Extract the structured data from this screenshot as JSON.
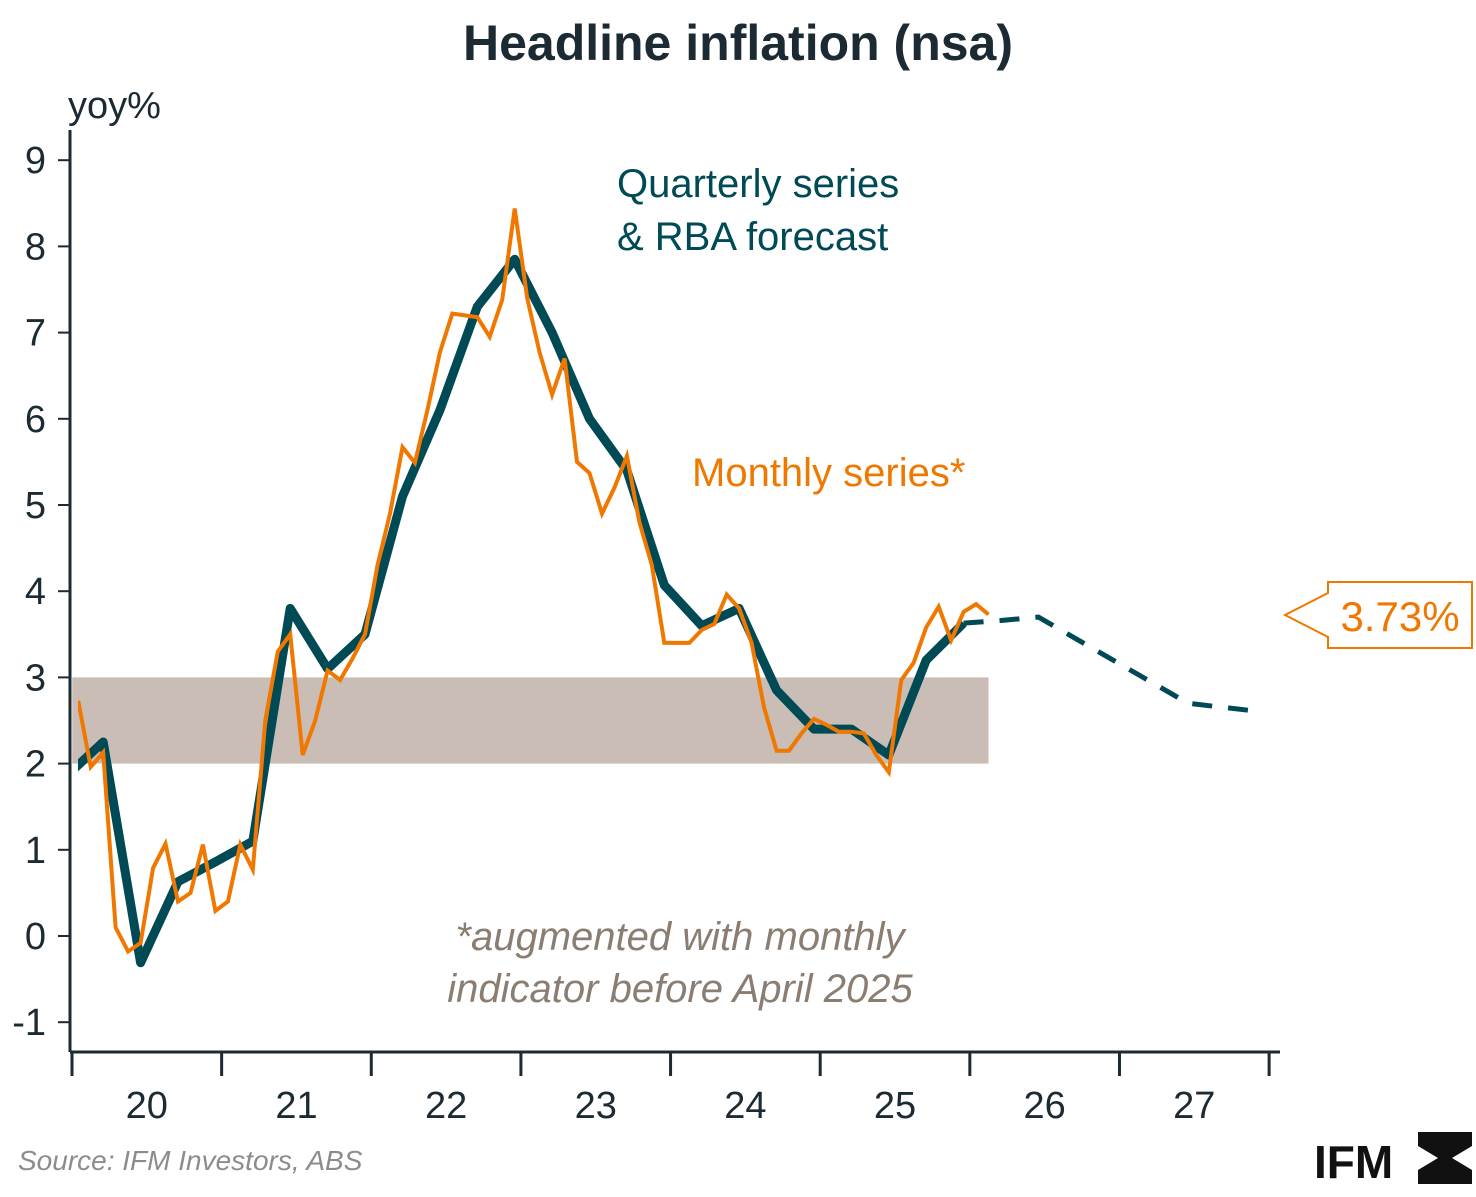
{
  "chart_data": {
    "type": "line",
    "title": "Headline inflation (nsa)",
    "ylabel": "yoy%",
    "ylim": [
      -1.4,
      9.4
    ],
    "yticks": [
      -1,
      0,
      1,
      2,
      3,
      4,
      5,
      6,
      7,
      8,
      9
    ],
    "xticks": [
      "20",
      "21",
      "22",
      "23",
      "24",
      "25",
      "26",
      "27"
    ],
    "xrange": [
      "2020-01",
      "2027-12"
    ],
    "grid": false,
    "colors": {
      "quarterly": "#004a55",
      "monthly": "#f07800",
      "band": "#c9bdb6",
      "note": "#8a7d72",
      "axis": "#1c2b33"
    },
    "target_band": {
      "low": 2,
      "high": 3,
      "from": "2020-01",
      "to": "2026-02"
    },
    "series": [
      {
        "name": "Quarterly series & RBA forecast",
        "style": "solid",
        "dates": [
          "2019-12",
          "2020-03",
          "2020-06",
          "2020-09",
          "2020-12",
          "2021-03",
          "2021-06",
          "2021-09",
          "2021-12",
          "2022-03",
          "2022-06",
          "2022-09",
          "2022-12",
          "2023-03",
          "2023-06",
          "2023-09",
          "2023-12",
          "2024-03",
          "2024-06",
          "2024-09",
          "2024-12",
          "2025-03",
          "2025-06",
          "2025-09",
          "2025-12"
        ],
        "values": [
          1.85,
          2.25,
          -0.31,
          0.63,
          0.86,
          1.1,
          3.8,
          3.1,
          3.5,
          5.1,
          6.1,
          7.3,
          7.85,
          7.0,
          6.0,
          5.4,
          4.07,
          3.6,
          3.8,
          2.85,
          2.4,
          2.4,
          2.1,
          3.2,
          3.63
        ]
      },
      {
        "name": "RBA forecast",
        "style": "dashed",
        "dates": [
          "2025-12",
          "2026-03",
          "2026-06",
          "2026-12",
          "2027-06",
          "2027-12"
        ],
        "values": [
          3.63,
          3.66,
          3.7,
          3.2,
          2.7,
          2.6
        ]
      },
      {
        "name": "Monthly series*",
        "style": "solid",
        "start": "2020-01",
        "values": [
          2.73,
          1.96,
          2.13,
          0.1,
          -0.18,
          -0.08,
          0.79,
          1.07,
          0.4,
          0.5,
          1.06,
          0.29,
          0.4,
          1.06,
          0.77,
          2.5,
          3.3,
          3.5,
          2.1,
          2.5,
          3.08,
          2.97,
          3.22,
          3.5,
          4.3,
          4.9,
          5.67,
          5.49,
          6.1,
          6.77,
          7.22,
          7.2,
          7.18,
          6.95,
          7.38,
          8.44,
          7.4,
          6.77,
          6.28,
          6.7,
          5.5,
          5.37,
          4.9,
          5.2,
          5.57,
          4.8,
          4.3,
          3.4,
          3.4,
          3.4,
          3.55,
          3.62,
          3.96,
          3.8,
          3.4,
          2.65,
          2.15,
          2.15,
          2.35,
          2.52,
          2.45,
          2.37,
          2.37,
          2.35,
          2.1,
          1.9,
          2.97,
          3.17,
          3.58,
          3.82,
          3.43,
          3.76,
          3.85,
          3.73
        ]
      }
    ],
    "annotations": {
      "quarterly_label_line1": "Quarterly series",
      "quarterly_label_line2": "& RBA forecast",
      "monthly_label": "Monthly series*",
      "note_line1": "*augmented with monthly",
      "note_line2": "indicator before April 2025",
      "latest_value_label": "3.73%"
    },
    "source": "Source: IFM Investors, ABS",
    "logo_text": "IFM"
  }
}
